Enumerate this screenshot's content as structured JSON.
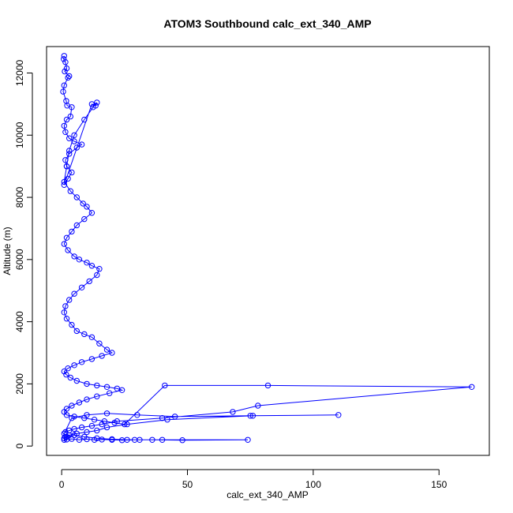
{
  "chart_data": {
    "type": "line",
    "title": "ATOM3 Southbound calc_ext_340_AMP",
    "xlabel": "calc_ext_340_AMP",
    "ylabel": "Altitude (m)",
    "xlim": [
      -6,
      170
    ],
    "ylim": [
      -300,
      12850
    ],
    "x_ticks": [
      0,
      50,
      100,
      150
    ],
    "y_ticks": [
      0,
      2000,
      4000,
      6000,
      8000,
      10000,
      12000
    ],
    "series_color": "#0000ff",
    "marker": "open-circle",
    "grid": false,
    "legend": "none",
    "series": [
      {
        "x": [
          1.0,
          0.8,
          1.5,
          2.0,
          1.2,
          3.0,
          2.5,
          1.0,
          0.6,
          1.8,
          2.2,
          4.0,
          3.5,
          2.0,
          1.0,
          1.5,
          3.0,
          5.0,
          8.0,
          6.0,
          3.0,
          1.5,
          2.0,
          4.0,
          2.5,
          1.0,
          12.0,
          13.5,
          14.0,
          12.5,
          9.0,
          5.0,
          3.0,
          2.0,
          1.0,
          3.5,
          6.0,
          8.5,
          10.0,
          12.0,
          9.0,
          6.0,
          4.0,
          2.0,
          1.0,
          2.5,
          5.0,
          7.0,
          10.0,
          12.0,
          15.0,
          14.0,
          11.0,
          8.0,
          5.0,
          3.0,
          1.5,
          1.0,
          2.0,
          4.0,
          6.0,
          9.0,
          12.0,
          15.0,
          18.0,
          20.0,
          16.0,
          12.0,
          8.0,
          5.0,
          2.5,
          1.0,
          1.8,
          3.5,
          6.0,
          10.0,
          14.0,
          18.0,
          22.0,
          24.0,
          19.0,
          14.0,
          10.0,
          7.0,
          4.0,
          2.0,
          1.0,
          2.0,
          5.0,
          9.0,
          13.0,
          17.0,
          21.0,
          25.0,
          41.0,
          82.0,
          163.0,
          78.0,
          68.0,
          40.0,
          22.0,
          16.0,
          12.0,
          8.0,
          5.0,
          3.0,
          1.5,
          1.0,
          4.0,
          10.0,
          18.0,
          30.0,
          45.0,
          75.0,
          110.0,
          76.0,
          42.0,
          26.0,
          18.0,
          14.0,
          10.0,
          6.0,
          3.0,
          1.5,
          1.0,
          2.0,
          5.0,
          9.0,
          14.0,
          20.0,
          26.0,
          31.0,
          36.0,
          48.0,
          74.0,
          40.0,
          29.0,
          24.0,
          20.0,
          16.0,
          13.0,
          10.0,
          7.0,
          4.0,
          2.0,
          1.0
        ],
        "y": [
          12550,
          12450,
          12350,
          12150,
          12050,
          11900,
          11850,
          11600,
          11400,
          11100,
          10950,
          10900,
          10600,
          10500,
          10300,
          10100,
          9900,
          9800,
          9700,
          9600,
          9400,
          9200,
          9000,
          8800,
          8600,
          8400,
          11000,
          10950,
          11050,
          10900,
          10500,
          10000,
          9500,
          9000,
          8500,
          8200,
          8000,
          7800,
          7700,
          7500,
          7300,
          7100,
          6900,
          6700,
          6500,
          6300,
          6100,
          6000,
          5900,
          5800,
          5700,
          5500,
          5300,
          5100,
          4900,
          4700,
          4500,
          4300,
          4100,
          3900,
          3700,
          3600,
          3500,
          3300,
          3100,
          3000,
          2900,
          2800,
          2700,
          2600,
          2500,
          2400,
          2300,
          2200,
          2100,
          2000,
          1950,
          1900,
          1850,
          1800,
          1700,
          1600,
          1500,
          1400,
          1300,
          1200,
          1100,
          1000,
          950,
          900,
          850,
          800,
          750,
          700,
          1950,
          1950,
          1900,
          1300,
          1100,
          900,
          800,
          700,
          650,
          600,
          550,
          500,
          450,
          400,
          900,
          1000,
          1050,
          1000,
          950,
          975,
          1000,
          975,
          850,
          700,
          600,
          500,
          450,
          400,
          350,
          300,
          250,
          300,
          350,
          300,
          250,
          220,
          200,
          200,
          200,
          190,
          200,
          200,
          200,
          190,
          200,
          210,
          200,
          220,
          200,
          230,
          210,
          200
        ]
      }
    ]
  }
}
